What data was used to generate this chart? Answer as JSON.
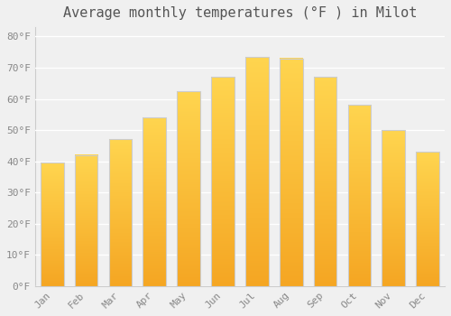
{
  "title": "Average monthly temperatures (°F ) in Milot",
  "months": [
    "Jan",
    "Feb",
    "Mar",
    "Apr",
    "May",
    "Jun",
    "Jul",
    "Aug",
    "Sep",
    "Oct",
    "Nov",
    "Dec"
  ],
  "values": [
    39.5,
    42.0,
    47.0,
    54.0,
    62.5,
    67.0,
    73.5,
    73.0,
    67.0,
    58.0,
    50.0,
    43.0
  ],
  "bar_color_top": "#FFD54F",
  "bar_color_bottom": "#F5A623",
  "bar_edge_color": "#cccccc",
  "background_color": "#f0f0f0",
  "grid_color": "#ffffff",
  "ytick_labels": [
    "0°F",
    "10°F",
    "20°F",
    "30°F",
    "40°F",
    "50°F",
    "60°F",
    "70°F",
    "80°F"
  ],
  "ytick_values": [
    0,
    10,
    20,
    30,
    40,
    50,
    60,
    70,
    80
  ],
  "ylim": [
    0,
    83
  ],
  "title_fontsize": 11,
  "tick_fontsize": 8,
  "font_color": "#888888",
  "title_color": "#555555"
}
